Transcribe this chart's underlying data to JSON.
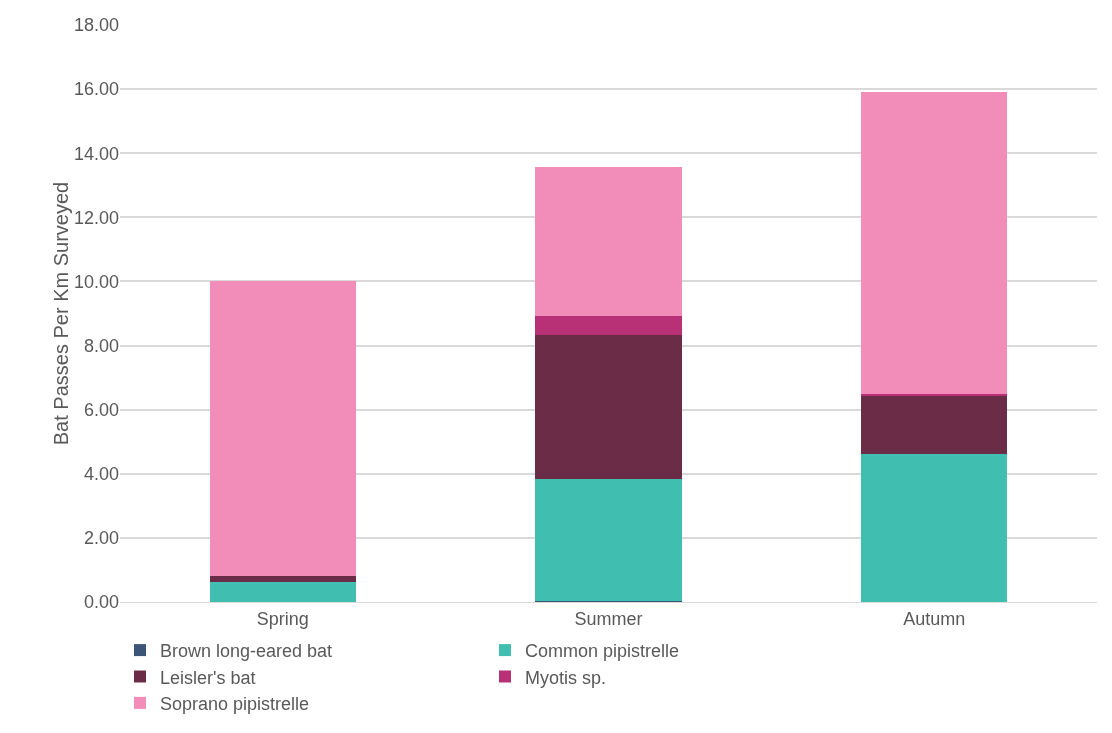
{
  "chart_data": {
    "type": "bar",
    "stacked": true,
    "ylabel": "Bat Passes Per Km Surveyed",
    "categories": [
      "Spring",
      "Summer",
      "Autumn"
    ],
    "series": [
      {
        "name": "Brown long-eared bat",
        "color": "#3b5478",
        "values": [
          0,
          0.03,
          0
        ]
      },
      {
        "name": "Common pipistrelle",
        "color": "#40bfb0",
        "values": [
          0.61,
          3.82,
          4.61
        ]
      },
      {
        "name": "Leisler's bat",
        "color": "#6b2c47",
        "values": [
          0.2,
          4.47,
          1.82
        ]
      },
      {
        "name": "Myotis sp.",
        "color": "#b83177",
        "values": [
          0,
          0.59,
          0.07
        ]
      },
      {
        "name": "Soprano pipistrelle",
        "color": "#f28cb8",
        "values": [
          9.19,
          4.67,
          9.41
        ]
      }
    ],
    "ylim": [
      0,
      18
    ],
    "yticks": [
      {
        "value": 0,
        "label": "0.00"
      },
      {
        "value": 2,
        "label": "2.00"
      },
      {
        "value": 4,
        "label": "4.00"
      },
      {
        "value": 6,
        "label": "6.00"
      },
      {
        "value": 8,
        "label": "8.00"
      },
      {
        "value": 10,
        "label": "10.00"
      },
      {
        "value": 12,
        "label": "12.00"
      },
      {
        "value": 14,
        "label": "14.00"
      },
      {
        "value": 16,
        "label": "16.00"
      },
      {
        "value": 18,
        "label": "18.00"
      }
    ],
    "grid": "y",
    "legend": "bottom"
  }
}
